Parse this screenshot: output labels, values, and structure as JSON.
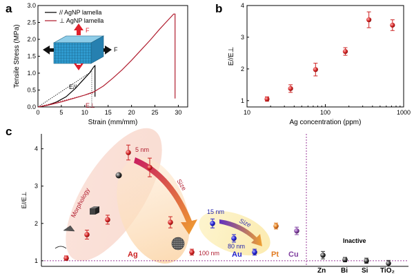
{
  "colors": {
    "axis": "#000000",
    "red": "#cc2222",
    "blue": "#2222cc",
    "orange": "#e07a20",
    "purple": "#8040a0",
    "gray": "#333333",
    "accent_red": "#b01c2e",
    "dash": "#9a3a9a"
  },
  "chart_data": [
    {
      "panel": "a",
      "type": "line",
      "xlabel": "Strain (mm/mm)",
      "ylabel": "Tensile Stress (MPa)",
      "xlim": [
        0,
        32
      ],
      "ylim": [
        0,
        3
      ],
      "xticks": [
        0,
        5,
        10,
        15,
        20,
        25,
        30
      ],
      "yticks": [
        0,
        0.5,
        1.0,
        1.5,
        2.0,
        2.5,
        3.0
      ],
      "ytick_labels": [
        "0.0",
        "0.5",
        "1.0",
        "1.5",
        "2.0",
        "2.5",
        "3.0"
      ],
      "legend": [
        {
          "label": "// AgNP lamella",
          "color": "#000000"
        },
        {
          "label": "⊥ AgNP lamella",
          "color": "#b01c2e"
        }
      ],
      "annotations": {
        "e_parallel": "E//",
        "e_perp": "E⊥",
        "force_label_top": "F",
        "force_label_right": "F"
      },
      "series": [
        {
          "name": "// AgNP lamella",
          "x": [
            0,
            2,
            4,
            6,
            8,
            9,
            10,
            11,
            11.5,
            12,
            12.2,
            12.2
          ],
          "y": [
            0,
            0.05,
            0.15,
            0.3,
            0.55,
            0.7,
            0.85,
            1.0,
            1.1,
            1.2,
            1.22,
            0.3
          ]
        },
        {
          "name": "⊥ AgNP lamella",
          "x": [
            0,
            2,
            5,
            8,
            10,
            12,
            14,
            16,
            18,
            20,
            22,
            24,
            26,
            28,
            29,
            29.3,
            29.3
          ],
          "y": [
            0,
            0.05,
            0.15,
            0.27,
            0.35,
            0.45,
            0.62,
            0.85,
            1.1,
            1.38,
            1.68,
            1.98,
            2.3,
            2.6,
            2.75,
            2.75,
            0.25
          ]
        }
      ]
    },
    {
      "panel": "b",
      "type": "scatter",
      "xscale": "log",
      "xlabel": "Ag concentration (ppm)",
      "ylabel": "E//E⊥",
      "xlim": [
        10,
        1000
      ],
      "ylim": [
        0.8,
        4
      ],
      "xticks": [
        10,
        100,
        1000
      ],
      "yticks": [
        1,
        2,
        3,
        4
      ],
      "points": [
        {
          "x": 18,
          "y": 1.05,
          "err": 0.07
        },
        {
          "x": 36,
          "y": 1.38,
          "err": 0.12
        },
        {
          "x": 75,
          "y": 1.98,
          "err": 0.2
        },
        {
          "x": 180,
          "y": 2.55,
          "err": 0.12
        },
        {
          "x": 360,
          "y": 3.55,
          "err": 0.25
        },
        {
          "x": 720,
          "y": 3.38,
          "err": 0.17
        }
      ]
    },
    {
      "panel": "c",
      "type": "scatter",
      "ylabel": "E//E⊥",
      "ylim": [
        0.85,
        4.4
      ],
      "yticks": [
        1,
        2,
        3,
        4
      ],
      "reference_line": 1,
      "points": [
        {
          "group": "Ag",
          "slot": 1,
          "y": 1.07,
          "err": 0.06,
          "color": "#cc2222"
        },
        {
          "group": "Ag",
          "slot": 2,
          "y": 1.7,
          "err": 0.12,
          "color": "#cc2222"
        },
        {
          "group": "Ag",
          "slot": 3,
          "y": 2.1,
          "err": 0.12,
          "color": "#cc2222"
        },
        {
          "group": "Ag",
          "slot": 4,
          "y": 3.9,
          "err": 0.2,
          "color": "#cc2222"
        },
        {
          "group": "Ag",
          "slot": 5,
          "y": 3.5,
          "err": 0.25,
          "color": "#cc2222"
        },
        {
          "group": "Ag",
          "slot": 6,
          "y": 2.03,
          "err": 0.15,
          "color": "#cc2222"
        },
        {
          "group": "Ag",
          "slot": 7,
          "y": 1.23,
          "err": 0.08,
          "color": "#cc2222"
        },
        {
          "group": "Au",
          "slot": 8,
          "y": 2.0,
          "err": 0.12,
          "color": "#2222cc"
        },
        {
          "group": "Au",
          "slot": 9,
          "y": 1.6,
          "err": 0.1,
          "color": "#2222cc"
        },
        {
          "group": "Au",
          "slot": 10,
          "y": 1.23,
          "err": 0.08,
          "color": "#2222cc"
        },
        {
          "group": "Pt",
          "slot": 11,
          "y": 1.93,
          "err": 0.08,
          "color": "#e07a20"
        },
        {
          "group": "Cu",
          "slot": 12,
          "y": 1.8,
          "err": 0.1,
          "color": "#8040a0"
        },
        {
          "group": "Zn",
          "slot": 13,
          "y": 1.15,
          "err": 0.1,
          "color": "#333333"
        },
        {
          "group": "Bi",
          "slot": 14,
          "y": 1.03,
          "err": 0.06,
          "color": "#333333"
        },
        {
          "group": "Si",
          "slot": 15,
          "y": 1.0,
          "err": 0.07,
          "color": "#333333"
        },
        {
          "group": "TiO2",
          "slot": 16,
          "y": 0.93,
          "err": 0.08,
          "color": "#333333"
        }
      ],
      "group_labels": {
        "ag": "Ag",
        "au": "Au",
        "pt": "Pt",
        "cu": "Cu",
        "zn": "Zn",
        "bi": "Bi",
        "si": "Si",
        "tio2": "TiO₂"
      },
      "annotations": {
        "morphology": "Morphology",
        "size_ag": "Size",
        "size_au": "Size",
        "ag_top": "5 nm",
        "ag_bottom": "100 nm",
        "au_top": "15 nm",
        "au_bottom": "80 nm",
        "inactive": "Inactive"
      }
    }
  ],
  "panels": {
    "a": "a",
    "b": "b",
    "c": "c"
  }
}
